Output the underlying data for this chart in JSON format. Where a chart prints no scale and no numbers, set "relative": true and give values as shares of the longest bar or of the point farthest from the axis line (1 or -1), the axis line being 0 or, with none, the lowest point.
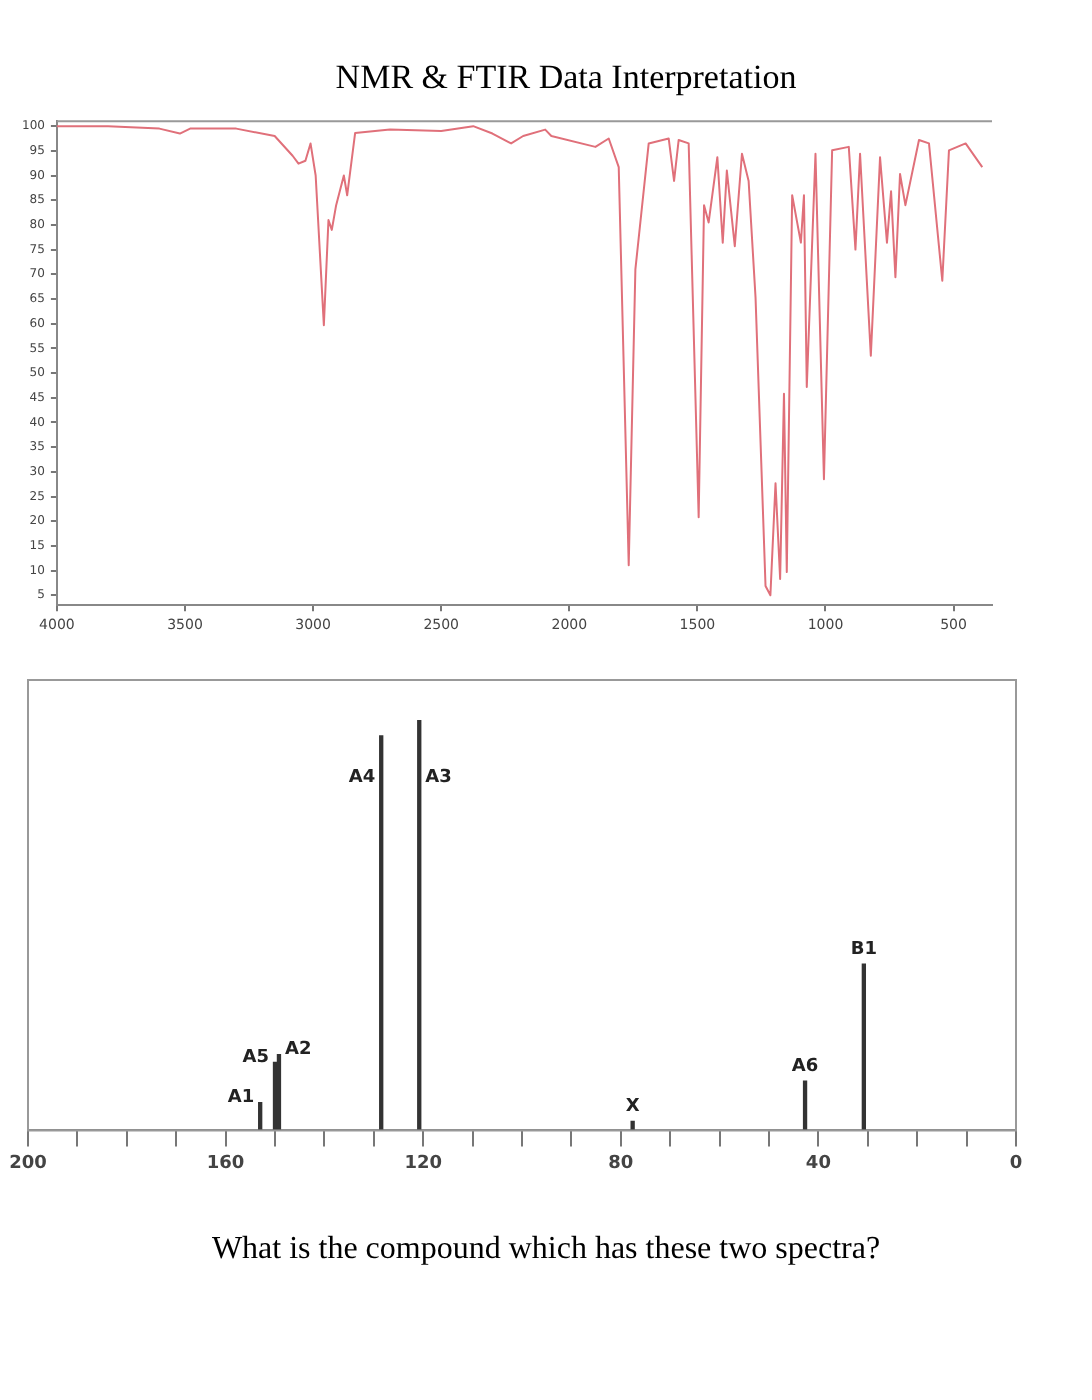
{
  "chart_data": [
    {
      "type": "line",
      "title": "NMR & FTIR Data Interpretation",
      "x": [
        4000,
        3800,
        3600,
        3520,
        3480,
        3300,
        3150,
        3080,
        3057,
        3030,
        3010,
        2990,
        2958,
        2940,
        2927,
        2910,
        2880,
        2867,
        2836,
        2700,
        2500,
        2375,
        2300,
        2227,
        2180,
        2094,
        2070,
        1898,
        1846,
        1807,
        1768,
        1742,
        1690,
        1612,
        1591,
        1573,
        1534,
        1495,
        1474,
        1456,
        1422,
        1401,
        1385,
        1354,
        1326,
        1300,
        1273,
        1234,
        1215,
        1195,
        1177,
        1162,
        1151,
        1130,
        1096,
        1084,
        1073,
        1039,
        1006,
        974,
        909,
        883,
        865,
        823,
        787,
        760,
        744,
        727,
        709,
        688,
        635,
        596,
        544,
        518,
        453,
        388
      ],
      "series": [
        {
          "color": "#e0707a",
          "values": [
            100,
            100,
            99.5,
            98.5,
            99.5,
            99.5,
            98,
            94,
            92.4,
            93,
            96.5,
            90,
            59.7,
            81,
            79,
            84,
            90,
            86,
            98.6,
            99.3,
            99,
            100,
            98.5,
            96.5,
            98,
            99.3,
            98,
            95.8,
            97.5,
            91.7,
            11.1,
            71,
            96.5,
            97.5,
            88.9,
            97.2,
            96.5,
            20.8,
            84,
            80.5,
            93.7,
            76.4,
            91,
            75.7,
            94.4,
            88.9,
            65.3,
            6.9,
            5,
            27.7,
            8.3,
            45.8,
            9.7,
            86,
            76.4,
            86,
            47.2,
            94.4,
            28.5,
            95.1,
            95.8,
            75,
            94.4,
            53.5,
            93.7,
            76.4,
            86.8,
            69.4,
            90.3,
            84,
            97.2,
            96.5,
            68.7,
            95.1,
            96.5,
            91.7
          ]
        }
      ],
      "xlim": [
        4000,
        350
      ],
      "xticks": [
        4000,
        3500,
        3000,
        2500,
        2000,
        1500,
        1000,
        500
      ],
      "ylim": [
        3,
        101
      ],
      "yticks": [
        5,
        10,
        15,
        20,
        25,
        30,
        35,
        40,
        45,
        50,
        55,
        60,
        65,
        70,
        75,
        80,
        85,
        90,
        95,
        100
      ],
      "line_style": "solid",
      "grid": false,
      "legend": false
    },
    {
      "type": "bar",
      "relative": true,
      "x": [
        153,
        150,
        149.2,
        128.5,
        120.8,
        77.6,
        42.7,
        30.8
      ],
      "values": [
        0.068,
        0.166,
        0.185,
        0.963,
        1,
        0.022,
        0.12,
        0.406
      ],
      "color": "#333333",
      "xlim": [
        200,
        0
      ],
      "xticks": [
        {
          "value": 200,
          "label": "200"
        },
        {
          "value": 190,
          "label": null
        },
        {
          "value": 180,
          "label": null
        },
        {
          "value": 170,
          "label": null
        },
        {
          "value": 160,
          "label": "160"
        },
        {
          "value": 150,
          "label": null
        },
        {
          "value": 140,
          "label": null
        },
        {
          "value": 130,
          "label": null
        },
        {
          "value": 120,
          "label": "120"
        },
        {
          "value": 110,
          "label": null
        },
        {
          "value": 100,
          "label": null
        },
        {
          "value": 90,
          "label": null
        },
        {
          "value": 80,
          "label": "80"
        },
        {
          "value": 70,
          "label": null
        },
        {
          "value": 60,
          "label": null
        },
        {
          "value": 50,
          "label": null
        },
        {
          "value": 40,
          "label": "40"
        },
        {
          "value": 30,
          "label": null
        },
        {
          "value": 20,
          "label": null
        },
        {
          "value": 10,
          "label": null
        },
        {
          "value": 0,
          "label": "0"
        }
      ],
      "tick_labels": "x",
      "grid": false,
      "legend": false,
      "annotations": [
        {
          "text": "A1",
          "x": 153,
          "y": 0.068
        },
        {
          "text": "A5",
          "x": 150,
          "y": 0.166
        },
        {
          "text": "A2",
          "x": 149.2,
          "y": 0.185
        },
        {
          "text": "A4",
          "x": 128.5,
          "y": 0.963
        },
        {
          "text": "A3",
          "x": 120.8,
          "y": 1
        },
        {
          "text": "X",
          "x": 77.6,
          "y": 0.022
        },
        {
          "text": "A6",
          "x": 42.7,
          "y": 0.12
        },
        {
          "text": "B1",
          "x": 30.8,
          "y": 0.406
        },
        "What is the compound which has these two spectra?"
      ]
    }
  ]
}
